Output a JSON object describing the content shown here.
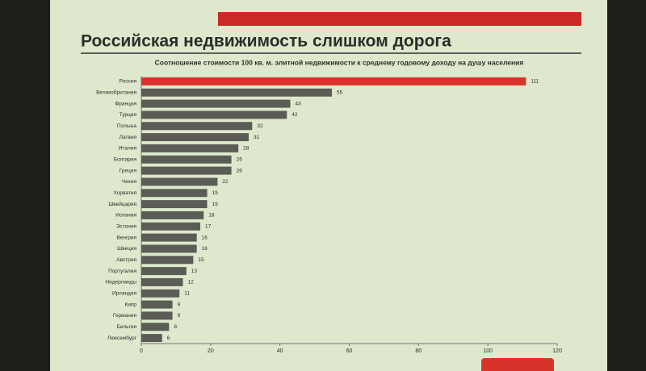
{
  "chart_data": {
    "type": "hbar",
    "title": "Российская недвижимость слишком дорога",
    "subtitle": "Соотношение стоимости 100 кв. м. элитной недвижимости к среднему годовому доходу на душу населения",
    "categories": [
      "Россия",
      "Великобритания",
      "Франция",
      "Турция",
      "Польша",
      "Латвия",
      "Италия",
      "Болгария",
      "Греция",
      "Чехия",
      "Хорватия",
      "Швейцария",
      "Испания",
      "Эстония",
      "Венгрия",
      "Швеция",
      "Австрия",
      "Португалия",
      "Нидерланды",
      "Ирландия",
      "Кипр",
      "Германия",
      "Бельгия",
      "Люксембург"
    ],
    "values": [
      111,
      55,
      43,
      42,
      32,
      31,
      28,
      26,
      26,
      22,
      19,
      19,
      18,
      17,
      16,
      16,
      15,
      13,
      12,
      11,
      9,
      9,
      8,
      6
    ],
    "colors": [
      "#d8332a",
      "#5c5c56",
      "#5c5c56",
      "#5c5c56",
      "#5c5c56",
      "#5c5c56",
      "#5c5c56",
      "#5c5c56",
      "#5c5c56",
      "#5c5c56",
      "#5c5c56",
      "#5c5c56",
      "#5c5c56",
      "#5c5c56",
      "#5c5c56",
      "#5c5c56",
      "#5c5c56",
      "#5c5c56",
      "#5c5c56",
      "#5c5c56",
      "#5c5c56",
      "#5c5c56",
      "#5c5c56",
      "#5c5c56"
    ],
    "xlim": [
      0,
      120
    ],
    "xticks": [
      0,
      20,
      40,
      60,
      80,
      100,
      120
    ]
  }
}
